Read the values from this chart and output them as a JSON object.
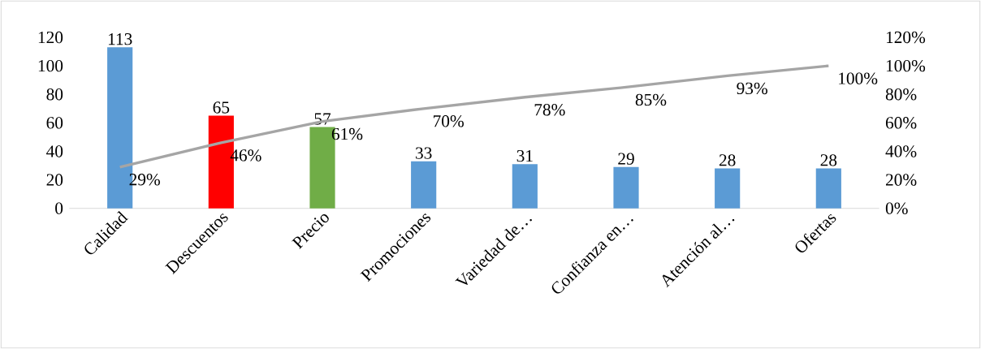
{
  "chart_data": {
    "type": "bar",
    "categories": [
      "Calidad",
      "Descuentos",
      "Precio",
      "Promociones",
      "Variedad de…",
      "Confianza en…",
      "Atención al…",
      "Ofertas"
    ],
    "series": [
      {
        "colors": [
          "#5b9bd5",
          "#ff0000",
          "#70ad47",
          "#5b9bd5",
          "#5b9bd5",
          "#5b9bd5",
          "#5b9bd5",
          "#5b9bd5"
        ],
        "values": [
          113,
          65,
          57,
          33,
          31,
          29,
          28,
          28
        ],
        "value_labels": [
          "113",
          "65",
          "57",
          "33",
          "31",
          "29",
          "28",
          "28"
        ]
      },
      {
        "type": "line",
        "axis": "y2",
        "color": "#a5a5a5",
        "values": [
          29,
          46,
          61,
          70,
          78,
          85,
          93,
          100
        ],
        "value_labels": [
          "29%",
          "46%",
          "61%",
          "70%",
          "78%",
          "85%",
          "93%",
          "100%"
        ]
      }
    ],
    "ylim": [
      0,
      120
    ],
    "yticks": [
      0,
      20,
      40,
      60,
      80,
      100,
      120
    ],
    "y2lim": [
      0,
      120
    ],
    "y2ticks": [
      {
        "value": 0,
        "label": "0%"
      },
      {
        "value": 20,
        "label": "20%"
      },
      {
        "value": 40,
        "label": "40%"
      },
      {
        "value": 60,
        "label": "60%"
      },
      {
        "value": 80,
        "label": "80%"
      },
      {
        "value": 100,
        "label": "100%"
      },
      {
        "value": 120,
        "label": "120%"
      }
    ]
  }
}
